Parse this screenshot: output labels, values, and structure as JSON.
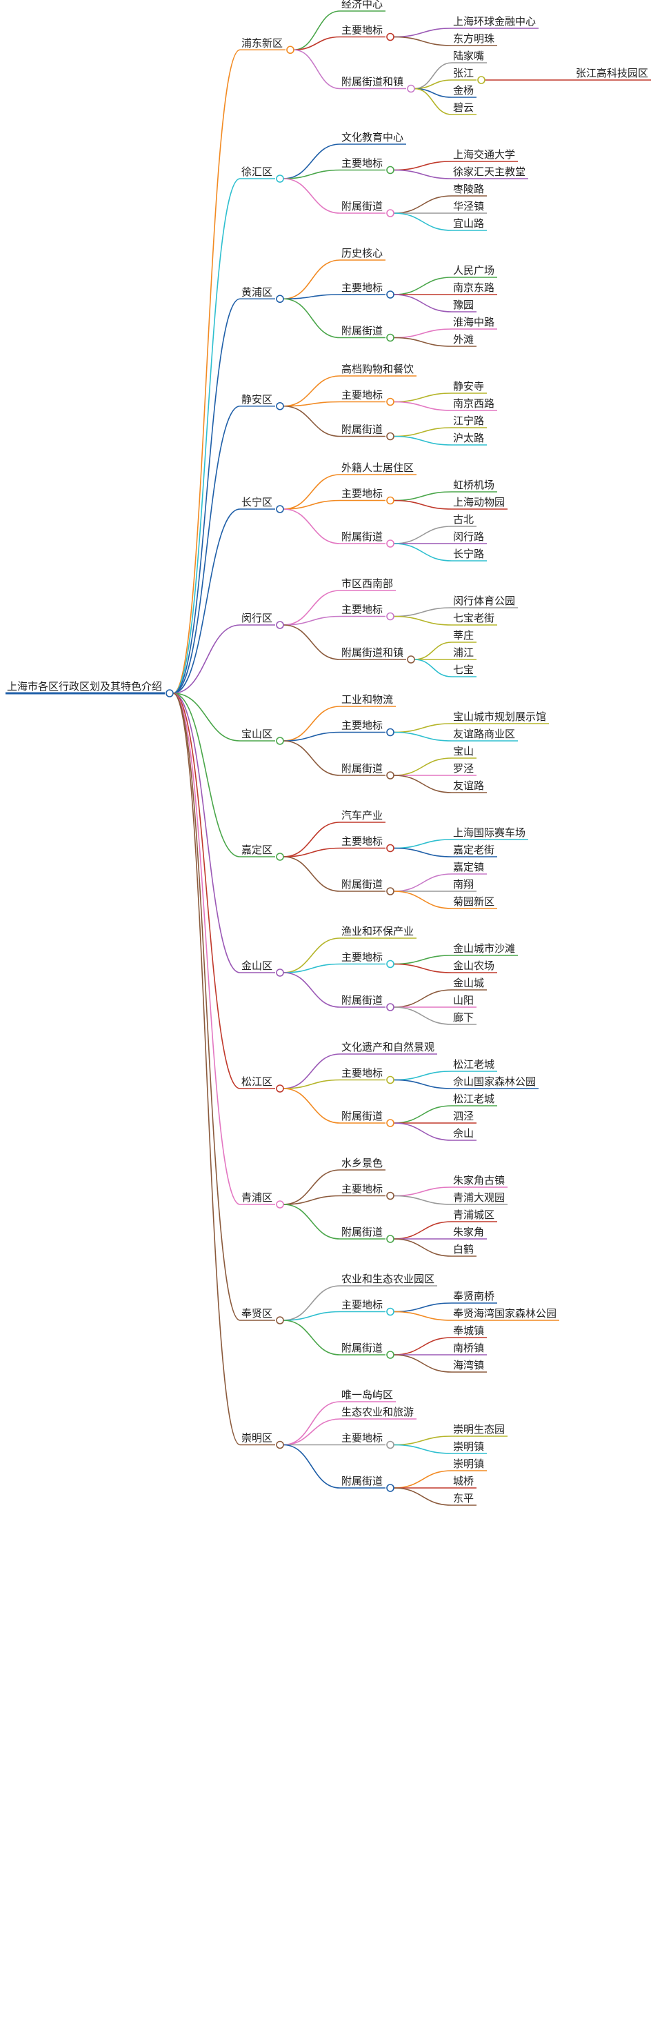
{
  "root": {
    "label": "上海市各区行政区划及其特色介绍",
    "color": "#1f5fa8"
  },
  "districts": [
    {
      "label": "浦东新区",
      "color": "#f28a22",
      "children": [
        {
          "label": "经济中心",
          "color": "#4aa64a",
          "children": []
        },
        {
          "label": "主要地标",
          "color": "#c0392b",
          "children": [
            {
              "label": "上海环球金融中心",
              "color": "#9b59b6"
            },
            {
              "label": "东方明珠",
              "color": "#8b5a3c"
            }
          ]
        },
        {
          "label": "附属街道和镇",
          "color": "#c879c8",
          "children": [
            {
              "label": "陆家嘴",
              "color": "#999999"
            },
            {
              "label": "张江",
              "color": "#b5b52a",
              "children": [
                {
                  "label": "张江高科技园区",
                  "color": "#c0392b"
                }
              ]
            },
            {
              "label": "金杨",
              "color": "#1f5fa8"
            },
            {
              "label": "碧云",
              "color": "#b5b52a"
            }
          ]
        }
      ]
    },
    {
      "label": "徐汇区",
      "color": "#2ebfcf",
      "children": [
        {
          "label": "文化教育中心",
          "color": "#1f5fa8",
          "children": []
        },
        {
          "label": "主要地标",
          "color": "#4aa64a",
          "children": [
            {
              "label": "上海交通大学",
              "color": "#c0392b"
            },
            {
              "label": "徐家汇天主教堂",
              "color": "#9b59b6"
            }
          ]
        },
        {
          "label": "附属街道",
          "color": "#e377c2",
          "children": [
            {
              "label": "枣陵路",
              "color": "#8b5a3c"
            },
            {
              "label": "华泾镇",
              "color": "#999999"
            },
            {
              "label": "宜山路",
              "color": "#2ebfcf"
            }
          ]
        }
      ]
    },
    {
      "label": "黄浦区",
      "color": "#1f5fa8",
      "children": [
        {
          "label": "历史核心",
          "color": "#f28a22",
          "children": []
        },
        {
          "label": "主要地标",
          "color": "#1f5fa8",
          "children": [
            {
              "label": "人民广场",
              "color": "#4aa64a"
            },
            {
              "label": "南京东路",
              "color": "#c0392b"
            },
            {
              "label": "豫园",
              "color": "#9b59b6"
            }
          ]
        },
        {
          "label": "附属街道",
          "color": "#4aa64a",
          "children": [
            {
              "label": "淮海中路",
              "color": "#e377c2"
            },
            {
              "label": "外滩",
              "color": "#8b5a3c"
            }
          ]
        }
      ]
    },
    {
      "label": "静安区",
      "color": "#1f5fa8",
      "children": [
        {
          "label": "高档购物和餐饮",
          "color": "#f28a22",
          "children": []
        },
        {
          "label": "主要地标",
          "color": "#f28a22",
          "children": [
            {
              "label": "静安寺",
              "color": "#b5b52a"
            },
            {
              "label": "南京西路",
              "color": "#e377c2"
            }
          ]
        },
        {
          "label": "附属街道",
          "color": "#8b5a3c",
          "children": [
            {
              "label": "江宁路",
              "color": "#b5b52a"
            },
            {
              "label": "沪太路",
              "color": "#2ebfcf"
            }
          ]
        }
      ]
    },
    {
      "label": "长宁区",
      "color": "#1f5fa8",
      "children": [
        {
          "label": "外籍人士居住区",
          "color": "#f28a22",
          "children": []
        },
        {
          "label": "主要地标",
          "color": "#f28a22",
          "children": [
            {
              "label": "虹桥机场",
              "color": "#4aa64a"
            },
            {
              "label": "上海动物园",
              "color": "#c0392b"
            }
          ]
        },
        {
          "label": "附属街道",
          "color": "#e377c2",
          "children": [
            {
              "label": "古北",
              "color": "#999999"
            },
            {
              "label": "闵行路",
              "color": "#9b59b6"
            },
            {
              "label": "长宁路",
              "color": "#2ebfcf"
            }
          ]
        }
      ]
    },
    {
      "label": "闵行区",
      "color": "#9b59b6",
      "children": [
        {
          "label": "市区西南部",
          "color": "#e377c2",
          "children": []
        },
        {
          "label": "主要地标",
          "color": "#c879c8",
          "children": [
            {
              "label": "闵行体育公园",
              "color": "#999999"
            },
            {
              "label": "七宝老街",
              "color": "#b5b52a"
            }
          ]
        },
        {
          "label": "附属街道和镇",
          "color": "#8b5a3c",
          "children": [
            {
              "label": "莘庄",
              "color": "#b5b52a"
            },
            {
              "label": "浦江",
              "color": "#b5b52a"
            },
            {
              "label": "七宝",
              "color": "#2ebfcf"
            }
          ]
        }
      ]
    },
    {
      "label": "宝山区",
      "color": "#4aa64a",
      "children": [
        {
          "label": "工业和物流",
          "color": "#f28a22",
          "children": []
        },
        {
          "label": "主要地标",
          "color": "#1f5fa8",
          "children": [
            {
              "label": "宝山城市规划展示馆",
              "color": "#b5b52a"
            },
            {
              "label": "友谊路商业区",
              "color": "#2ebfcf"
            }
          ]
        },
        {
          "label": "附属街道",
          "color": "#8b5a3c",
          "children": [
            {
              "label": "宝山",
              "color": "#b5b52a"
            },
            {
              "label": "罗泾",
              "color": "#e377c2"
            },
            {
              "label": "友谊路",
              "color": "#8b5a3c"
            }
          ]
        }
      ]
    },
    {
      "label": "嘉定区",
      "color": "#4aa64a",
      "children": [
        {
          "label": "汽车产业",
          "color": "#c0392b",
          "children": []
        },
        {
          "label": "主要地标",
          "color": "#c0392b",
          "children": [
            {
              "label": "上海国际赛车场",
              "color": "#2ebfcf"
            },
            {
              "label": "嘉定老街",
              "color": "#1f5fa8"
            }
          ]
        },
        {
          "label": "附属街道",
          "color": "#8b5a3c",
          "children": [
            {
              "label": "嘉定镇",
              "color": "#c879c8"
            },
            {
              "label": "南翔",
              "color": "#999999"
            },
            {
              "label": "菊园新区",
              "color": "#f28a22"
            }
          ]
        }
      ]
    },
    {
      "label": "金山区",
      "color": "#9b59b6",
      "children": [
        {
          "label": "渔业和环保产业",
          "color": "#b5b52a",
          "children": []
        },
        {
          "label": "主要地标",
          "color": "#2ebfcf",
          "children": [
            {
              "label": "金山城市沙滩",
              "color": "#4aa64a"
            },
            {
              "label": "金山农场",
              "color": "#c0392b"
            }
          ]
        },
        {
          "label": "附属街道",
          "color": "#9b59b6",
          "children": [
            {
              "label": "金山城",
              "color": "#8b5a3c"
            },
            {
              "label": "山阳",
              "color": "#e377c2"
            },
            {
              "label": "廊下",
              "color": "#999999"
            }
          ]
        }
      ]
    },
    {
      "label": "松江区",
      "color": "#c0392b",
      "children": [
        {
          "label": "文化遗产和自然景观",
          "color": "#9b59b6",
          "children": []
        },
        {
          "label": "主要地标",
          "color": "#b5b52a",
          "children": [
            {
              "label": "松江老城",
              "color": "#2ebfcf"
            },
            {
              "label": "佘山国家森林公园",
              "color": "#1f5fa8"
            }
          ]
        },
        {
          "label": "附属街道",
          "color": "#f28a22",
          "children": [
            {
              "label": "松江老城",
              "color": "#4aa64a"
            },
            {
              "label": "泗泾",
              "color": "#c0392b"
            },
            {
              "label": "佘山",
              "color": "#9b59b6"
            }
          ]
        }
      ]
    },
    {
      "label": "青浦区",
      "color": "#e377c2",
      "children": [
        {
          "label": "水乡景色",
          "color": "#8b5a3c",
          "children": []
        },
        {
          "label": "主要地标",
          "color": "#8b5a3c",
          "children": [
            {
              "label": "朱家角古镇",
              "color": "#e377c2"
            },
            {
              "label": "青浦大观园",
              "color": "#999999"
            }
          ]
        },
        {
          "label": "附属街道",
          "color": "#4aa64a",
          "children": [
            {
              "label": "青浦城区",
              "color": "#c0392b"
            },
            {
              "label": "朱家角",
              "color": "#9b59b6"
            },
            {
              "label": "白鹤",
              "color": "#8b5a3c"
            }
          ]
        }
      ]
    },
    {
      "label": "奉贤区",
      "color": "#8b5a3c",
      "children": [
        {
          "label": "农业和生态农业园区",
          "color": "#999999",
          "children": []
        },
        {
          "label": "主要地标",
          "color": "#2ebfcf",
          "children": [
            {
              "label": "奉贤南桥",
              "color": "#1f5fa8"
            },
            {
              "label": "奉贤海湾国家森林公园",
              "color": "#f28a22"
            }
          ]
        },
        {
          "label": "附属街道",
          "color": "#4aa64a",
          "children": [
            {
              "label": "奉城镇",
              "color": "#c0392b"
            },
            {
              "label": "南桥镇",
              "color": "#9b59b6"
            },
            {
              "label": "海湾镇",
              "color": "#8b5a3c"
            }
          ]
        }
      ]
    },
    {
      "label": "崇明区",
      "color": "#8b5a3c",
      "children": [
        {
          "label": "唯一岛屿区",
          "color": "#e377c2",
          "children": []
        },
        {
          "label": "生态农业和旅游",
          "color": "#e377c2",
          "children": []
        },
        {
          "label": "主要地标",
          "color": "#999999",
          "children": [
            {
              "label": "崇明生态园",
              "color": "#b5b52a"
            },
            {
              "label": "崇明镇",
              "color": "#2ebfcf"
            }
          ]
        },
        {
          "label": "附属街道",
          "color": "#1f5fa8",
          "children": [
            {
              "label": "崇明镇",
              "color": "#f28a22"
            },
            {
              "label": "城桥",
              "color": "#c0392b"
            },
            {
              "label": "东平",
              "color": "#8b5a3c"
            }
          ]
        }
      ]
    }
  ]
}
